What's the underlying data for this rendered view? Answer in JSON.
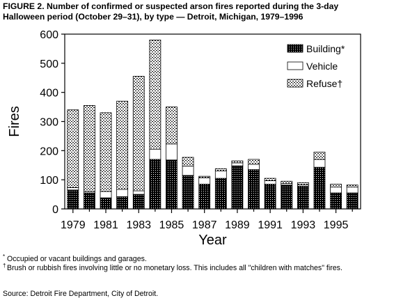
{
  "figure": {
    "title_line1": "FIGURE 2. Number of confirmed or suspected arson fires reported during the 3-day",
    "title_line2": "Halloween period (October 29–31), by type — Detroit, Michigan, 1979–1996"
  },
  "chart_data": {
    "type": "bar",
    "stacked": true,
    "xlabel": "Year",
    "ylabel": "Fires",
    "ylim": [
      0,
      600
    ],
    "yticks": [
      0,
      100,
      200,
      300,
      400,
      500,
      600
    ],
    "categories": [
      "1979",
      "1980",
      "1981",
      "1982",
      "1983",
      "1984",
      "1985",
      "1986",
      "1987",
      "1988",
      "1989",
      "1990",
      "1991",
      "1992",
      "1993",
      "1994",
      "1995",
      "1996"
    ],
    "xtick_labels": [
      "1979",
      "1981",
      "1983",
      "1985",
      "1987",
      "1989",
      "1991",
      "1993",
      "1995"
    ],
    "series": [
      {
        "name": "Building*",
        "pattern": "dense-dots",
        "values": [
          65,
          55,
          38,
          42,
          50,
          170,
          168,
          115,
          85,
          105,
          148,
          135,
          85,
          82,
          78,
          143,
          55,
          55
        ]
      },
      {
        "name": "Vehicle",
        "pattern": "white",
        "values": [
          8,
          5,
          22,
          25,
          12,
          35,
          55,
          32,
          22,
          25,
          10,
          18,
          12,
          5,
          5,
          27,
          20,
          20
        ]
      },
      {
        "name": "Refuse†",
        "pattern": "light-dots",
        "values": [
          267,
          295,
          270,
          303,
          393,
          375,
          127,
          30,
          5,
          8,
          7,
          17,
          8,
          8,
          7,
          25,
          10,
          7
        ]
      }
    ],
    "legend_position": "top-right",
    "grid": false
  },
  "footnotes": {
    "building_mark": "*",
    "building_text": "Occupied or vacant buildings and garages.",
    "refuse_mark": "†",
    "refuse_text": "Brush or rubbish fires involving little or no monetary loss. This includes all \"children with matches\" fires.",
    "source": "Source: Detroit Fire Department, City of Detroit."
  },
  "colors": {
    "ink": "#000000",
    "paper": "#ffffff"
  }
}
